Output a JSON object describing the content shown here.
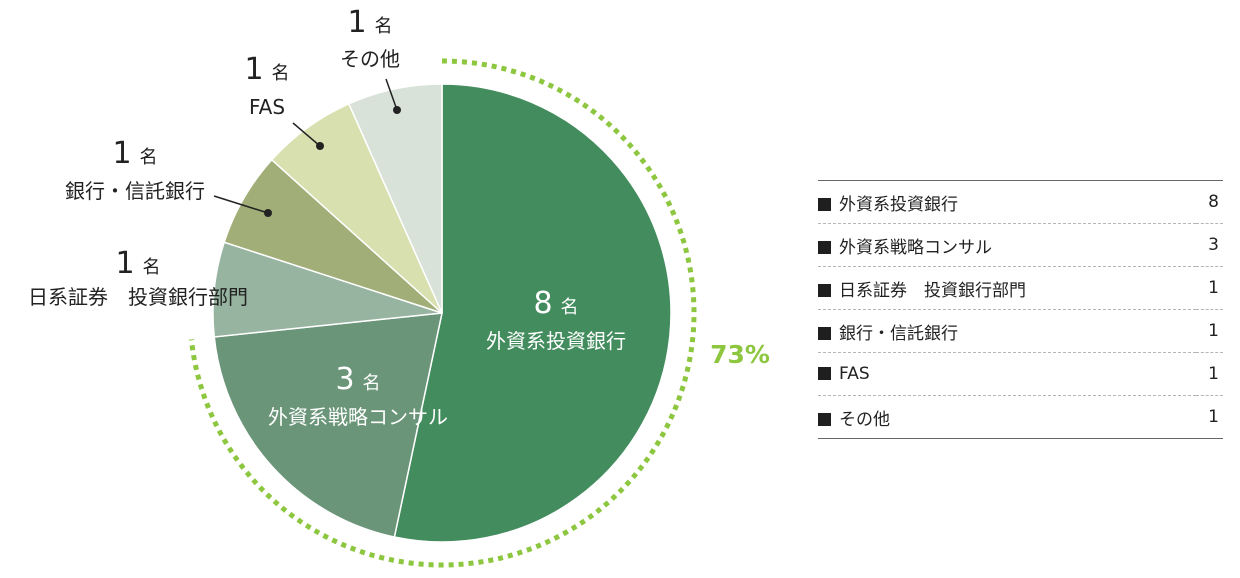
{
  "chart_data": {
    "type": "pie",
    "unit": "名",
    "categories": [
      "外資系投資銀行",
      "外資系戦略コンサル",
      "日系証券　投資銀行部門",
      "銀行・信託銀行",
      "FAS",
      "その他"
    ],
    "values": [
      8,
      3,
      1,
      1,
      1,
      1
    ],
    "colors": [
      "#438c5e",
      "#6a9578",
      "#97b4a0",
      "#a2ae78",
      "#d7e0ae",
      "#d8e2d8"
    ],
    "label_counts": [
      "8",
      "3",
      "1",
      "1",
      "1",
      "1"
    ],
    "highlight": {
      "text": "73%",
      "color": "#8dc63f",
      "slices": [
        0,
        1
      ]
    }
  },
  "legend": {
    "rows": [
      {
        "label": "外資系投資銀行",
        "value": "8"
      },
      {
        "label": "外資系戦略コンサル",
        "value": "3"
      },
      {
        "label": "日系証券　投資銀行部門",
        "value": "1"
      },
      {
        "label": "銀行・信託銀行",
        "value": "1"
      },
      {
        "label": "FAS",
        "value": "1"
      },
      {
        "label": "その他",
        "value": "1"
      }
    ]
  }
}
